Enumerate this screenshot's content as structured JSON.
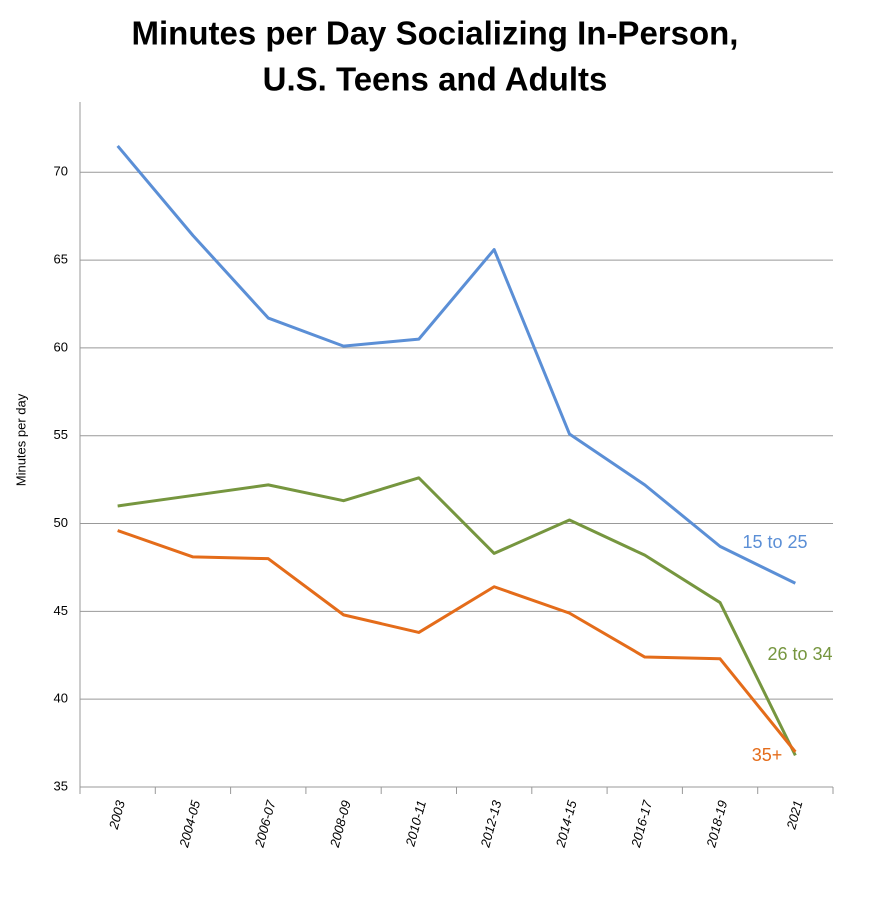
{
  "chart_data": {
    "type": "line",
    "title": [
      "Minutes per Day Socializing In-Person,",
      "U.S. Teens and Adults"
    ],
    "y_label": "Minutes per day",
    "categories": [
      "2003",
      "2004-05",
      "2006-07",
      "2008-09",
      "2010-11",
      "2012-13",
      "2014-15",
      "2016-17",
      "2018-19",
      "2021"
    ],
    "series": [
      {
        "name": "15 to 25",
        "color": "#5b8fd6",
        "values": [
          71.5,
          66.4,
          61.7,
          60.1,
          60.5,
          65.6,
          55.1,
          52.2,
          48.7,
          46.6
        ]
      },
      {
        "name": "26 to 34",
        "color": "#76963f",
        "values": [
          51.0,
          51.6,
          52.2,
          51.3,
          52.6,
          48.3,
          50.2,
          48.2,
          45.5,
          36.8
        ]
      },
      {
        "name": "35+",
        "color": "#e46c1a",
        "values": [
          49.6,
          48.1,
          48.0,
          44.8,
          43.8,
          46.4,
          44.9,
          42.4,
          42.3,
          37.0
        ]
      }
    ],
    "ylim": [
      35,
      74
    ],
    "yticks": [
      35,
      40,
      45,
      50,
      55,
      60,
      65,
      70
    ],
    "grid": true
  }
}
